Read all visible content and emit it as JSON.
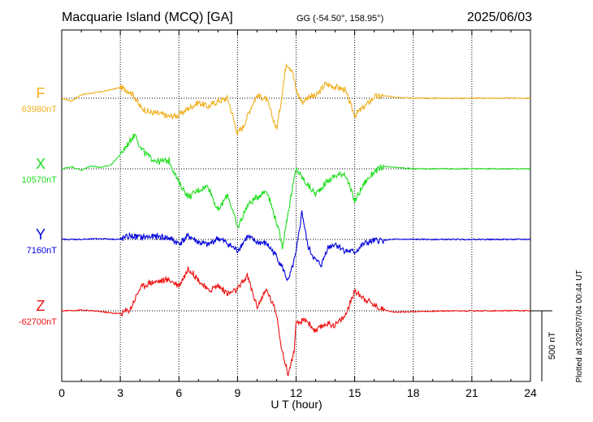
{
  "header": {
    "station": "Macquarie Island (MCQ)  [GA]",
    "coords": "GG (-54.50°, 158.95°)",
    "date": "2025/06/03"
  },
  "footer": {
    "plotted_note": "Plotted at 2025/07/04 00:44 UT"
  },
  "chart_data": {
    "type": "line",
    "title": "Macquarie Island (MCQ)  [GA]",
    "xlabel": "U T (hour)",
    "ylabel": "",
    "x_ticks": [
      0,
      3,
      6,
      9,
      12,
      15,
      18,
      21,
      24
    ],
    "xlim": [
      0,
      24
    ],
    "grid": true,
    "scale_bar": {
      "label": "500 nT",
      "value_nT": 500
    },
    "ylim_nT_about_baseline": [
      -500,
      500
    ],
    "series": [
      {
        "name": "F",
        "baseline_label": "63980nT",
        "color": "#f0b020",
        "points": [
          [
            0,
            0
          ],
          [
            0.5,
            -20
          ],
          [
            1,
            25
          ],
          [
            1.5,
            35
          ],
          [
            2,
            45
          ],
          [
            2.5,
            60
          ],
          [
            3,
            75
          ],
          [
            3.4,
            55
          ],
          [
            3.7,
            20
          ],
          [
            4,
            -60
          ],
          [
            4.5,
            -100
          ],
          [
            5,
            -110
          ],
          [
            5.5,
            -130
          ],
          [
            6,
            -120
          ],
          [
            6.5,
            -70
          ],
          [
            7,
            -30
          ],
          [
            7.5,
            -60
          ],
          [
            8,
            -20
          ],
          [
            8.5,
            0
          ],
          [
            9,
            -250
          ],
          [
            9.3,
            -200
          ],
          [
            9.7,
            -60
          ],
          [
            10,
            20
          ],
          [
            10.5,
            -10
          ],
          [
            11,
            -220
          ],
          [
            11.2,
            -50
          ],
          [
            11.5,
            250
          ],
          [
            11.8,
            200
          ],
          [
            12,
            60
          ],
          [
            12.3,
            -30
          ],
          [
            12.7,
            20
          ],
          [
            13,
            10
          ],
          [
            13.5,
            100
          ],
          [
            14,
            80
          ],
          [
            14.5,
            60
          ],
          [
            14.8,
            -50
          ],
          [
            15,
            -120
          ],
          [
            15.5,
            -60
          ],
          [
            16,
            10
          ],
          [
            16.5,
            15
          ],
          [
            17,
            10
          ],
          [
            18,
            0
          ],
          [
            20,
            0
          ],
          [
            22,
            0
          ],
          [
            24,
            0
          ]
        ]
      },
      {
        "name": "X",
        "baseline_label": "10570nT",
        "color": "#22dd22",
        "points": [
          [
            0,
            0
          ],
          [
            0.5,
            15
          ],
          [
            1,
            -10
          ],
          [
            1.5,
            20
          ],
          [
            2,
            10
          ],
          [
            2.5,
            25
          ],
          [
            3,
            100
          ],
          [
            3.5,
            200
          ],
          [
            3.8,
            250
          ],
          [
            4,
            150
          ],
          [
            4.5,
            80
          ],
          [
            5,
            50
          ],
          [
            5.5,
            60
          ],
          [
            6,
            -100
          ],
          [
            6.5,
            -200
          ],
          [
            7,
            -150
          ],
          [
            7.5,
            -120
          ],
          [
            8,
            -300
          ],
          [
            8.5,
            -180
          ],
          [
            9,
            -420
          ],
          [
            9.5,
            -260
          ],
          [
            10,
            -200
          ],
          [
            10.5,
            -150
          ],
          [
            11,
            -380
          ],
          [
            11.3,
            -550
          ],
          [
            11.6,
            -300
          ],
          [
            12,
            0
          ],
          [
            12.5,
            -100
          ],
          [
            13,
            -180
          ],
          [
            13.5,
            -100
          ],
          [
            14,
            -50
          ],
          [
            14.5,
            -30
          ],
          [
            15,
            -230
          ],
          [
            15.5,
            -100
          ],
          [
            16,
            -20
          ],
          [
            16.5,
            15
          ],
          [
            17,
            10
          ],
          [
            18,
            0
          ],
          [
            20,
            0
          ],
          [
            22,
            0
          ],
          [
            24,
            0
          ]
        ]
      },
      {
        "name": "Y",
        "baseline_label": "7160nT",
        "color": "#0000dd",
        "points": [
          [
            0,
            0
          ],
          [
            1,
            0
          ],
          [
            2,
            5
          ],
          [
            3,
            0
          ],
          [
            3.5,
            25
          ],
          [
            4,
            15
          ],
          [
            5,
            20
          ],
          [
            5.5,
            10
          ],
          [
            6,
            -30
          ],
          [
            6.5,
            25
          ],
          [
            7,
            -20
          ],
          [
            7.5,
            -40
          ],
          [
            8,
            10
          ],
          [
            8.5,
            -30
          ],
          [
            9,
            -80
          ],
          [
            9.5,
            20
          ],
          [
            10,
            -20
          ],
          [
            10.5,
            -30
          ],
          [
            11,
            -120
          ],
          [
            11.3,
            -200
          ],
          [
            11.6,
            -300
          ],
          [
            12,
            -100
          ],
          [
            12.3,
            200
          ],
          [
            12.6,
            -50
          ],
          [
            13,
            -150
          ],
          [
            13.3,
            -180
          ],
          [
            13.6,
            -60
          ],
          [
            14,
            -30
          ],
          [
            14.5,
            -80
          ],
          [
            15,
            -90
          ],
          [
            15.5,
            -30
          ],
          [
            16,
            -10
          ],
          [
            17,
            0
          ],
          [
            18,
            0
          ],
          [
            20,
            0
          ],
          [
            22,
            0
          ],
          [
            24,
            0
          ]
        ]
      },
      {
        "name": "Z",
        "baseline_label": "-62700nT",
        "color": "#ee1111",
        "points": [
          [
            0,
            0
          ],
          [
            1,
            5
          ],
          [
            2,
            -5
          ],
          [
            2.5,
            -15
          ],
          [
            3,
            -20
          ],
          [
            3.5,
            10
          ],
          [
            4,
            160
          ],
          [
            4.5,
            200
          ],
          [
            5,
            210
          ],
          [
            5.5,
            220
          ],
          [
            6,
            180
          ],
          [
            6.5,
            300
          ],
          [
            7,
            220
          ],
          [
            7.5,
            140
          ],
          [
            8,
            180
          ],
          [
            8.5,
            120
          ],
          [
            9,
            150
          ],
          [
            9.5,
            250
          ],
          [
            10,
            30
          ],
          [
            10.5,
            150
          ],
          [
            11,
            -20
          ],
          [
            11.3,
            -300
          ],
          [
            11.6,
            -450
          ],
          [
            11.9,
            -280
          ],
          [
            12,
            -100
          ],
          [
            12.5,
            -60
          ],
          [
            13,
            -150
          ],
          [
            13.5,
            -90
          ],
          [
            14,
            -100
          ],
          [
            14.5,
            -40
          ],
          [
            15,
            140
          ],
          [
            15.5,
            90
          ],
          [
            16,
            40
          ],
          [
            16.5,
            10
          ],
          [
            17,
            -10
          ],
          [
            18,
            -5
          ],
          [
            20,
            0
          ],
          [
            22,
            0
          ],
          [
            24,
            0
          ]
        ]
      }
    ]
  }
}
